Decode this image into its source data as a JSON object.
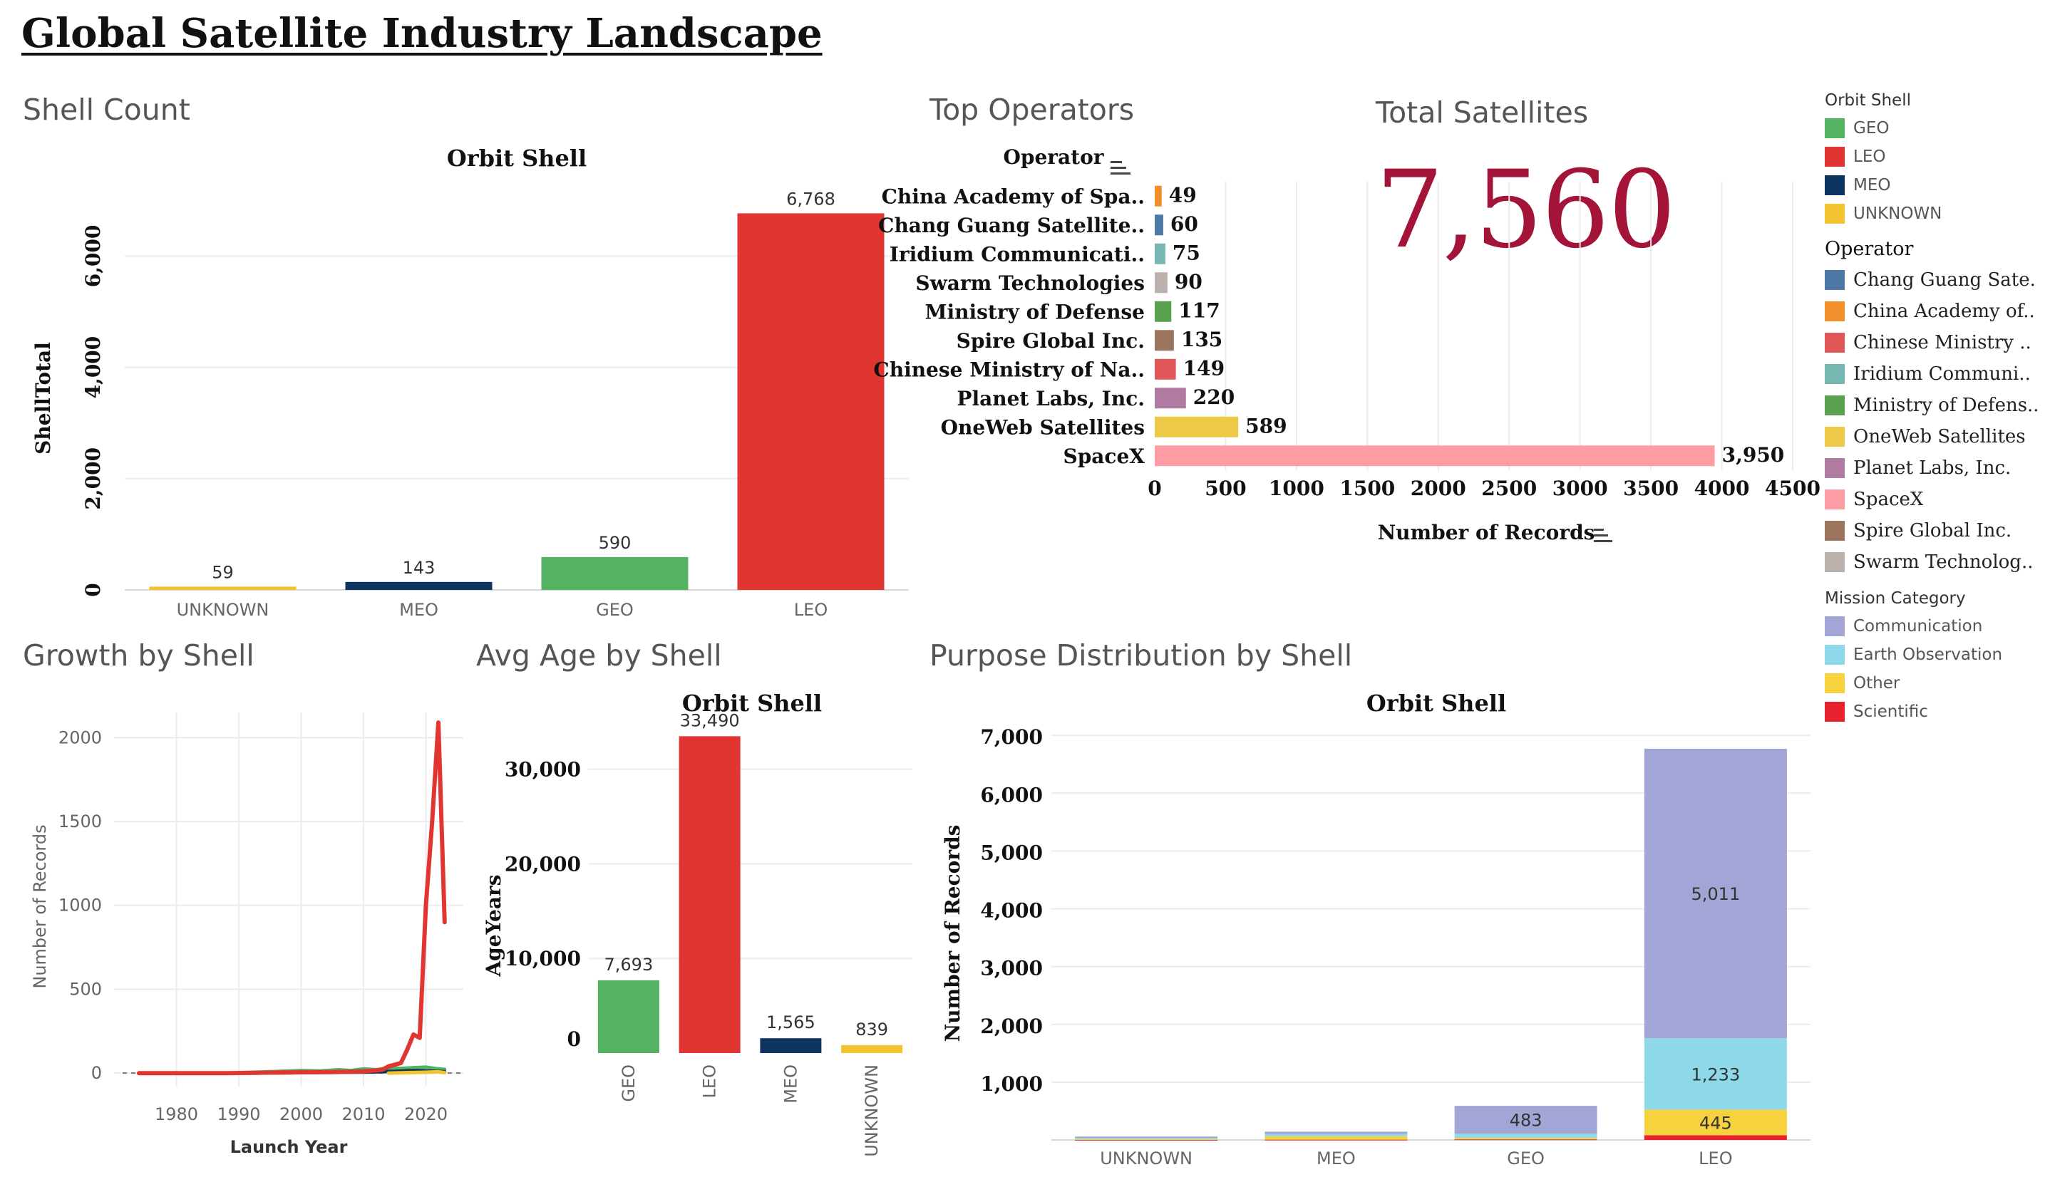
{
  "dashboard_title": "Global Satellite Industry Landscape",
  "sections": {
    "shell_count": "Shell Count",
    "top_operators": "Top Operators",
    "total_satellites": "Total Satellites",
    "growth_by_shell": "Growth by Shell",
    "avg_age_by_shell": "Avg Age by Shell",
    "purpose_distribution": "Purpose Distribution by Shell"
  },
  "total_satellites_value": "7,560",
  "colors": {
    "GEO": "#55b263",
    "LEO": "#e03530",
    "MEO": "#0d3560",
    "UNKNOWN": "#f2c230",
    "Communication": "#a3a5d6",
    "Earth Observation": "#8dd9e9",
    "Other": "#f6d23e",
    "Scientific": "#e8222e"
  },
  "legend": {
    "orbit_shell": {
      "title": "Orbit Shell",
      "items": [
        {
          "label": "GEO",
          "color": "#55b263"
        },
        {
          "label": "LEO",
          "color": "#e03530"
        },
        {
          "label": "MEO",
          "color": "#0d3560"
        },
        {
          "label": "UNKNOWN",
          "color": "#f2c230"
        }
      ]
    },
    "operator": {
      "title": "Operator",
      "items": [
        {
          "label": "Chang Guang Sate..",
          "color": "#4e79a7"
        },
        {
          "label": "China Academy of..",
          "color": "#f28e2b"
        },
        {
          "label": "Chinese Ministry ..",
          "color": "#e15759"
        },
        {
          "label": "Iridium Communi..",
          "color": "#76b7b2"
        },
        {
          "label": "Ministry of Defens..",
          "color": "#59a14f"
        },
        {
          "label": "OneWeb Satellites",
          "color": "#edc948"
        },
        {
          "label": "Planet Labs, Inc.",
          "color": "#b07aa1"
        },
        {
          "label": "SpaceX",
          "color": "#ff9da7"
        },
        {
          "label": "Spire Global Inc.",
          "color": "#9c755f"
        },
        {
          "label": "Swarm Technolog..",
          "color": "#bab0ac"
        }
      ]
    },
    "mission_category": {
      "title": "Mission Category",
      "items": [
        {
          "label": "Communication",
          "color": "#a3a5d6"
        },
        {
          "label": "Earth Observation",
          "color": "#8dd9e9"
        },
        {
          "label": "Other",
          "color": "#f6d23e"
        },
        {
          "label": "Scientific",
          "color": "#e8222e"
        }
      ]
    }
  },
  "chart_data": [
    {
      "id": "shell_count",
      "type": "bar",
      "title": "Orbit Shell",
      "ylabel": "ShellTotal",
      "categories": [
        "UNKNOWN",
        "MEO",
        "GEO",
        "LEO"
      ],
      "values": [
        59,
        143,
        590,
        6768
      ],
      "data_labels": [
        "59",
        "143",
        "590",
        "6,768"
      ],
      "ylim": [
        0,
        7400
      ],
      "yticks": [
        0,
        2000,
        4000,
        6000
      ],
      "ytick_labels": [
        "0",
        "2,000",
        "4,000",
        "6,000"
      ]
    },
    {
      "id": "top_operators",
      "type": "bar",
      "orientation": "horizontal",
      "title": "Operator",
      "xlabel": "Number of Records",
      "categories": [
        "China Academy of Spa..",
        "Chang Guang Satellite..",
        "Iridium Communicati..",
        "Swarm Technologies",
        "Ministry of Defense",
        "Spire Global Inc.",
        "Chinese Ministry of Na..",
        "Planet Labs, Inc.",
        "OneWeb Satellites",
        "SpaceX"
      ],
      "values": [
        49,
        60,
        75,
        90,
        117,
        135,
        149,
        220,
        589,
        3950
      ],
      "data_labels": [
        "49",
        "60",
        "75",
        "90",
        "117",
        "135",
        "149",
        "220",
        "589",
        "3,950"
      ],
      "colors": [
        "#f28e2b",
        "#4e79a7",
        "#76b7b2",
        "#bab0ac",
        "#59a14f",
        "#9c755f",
        "#e15759",
        "#b07aa1",
        "#edc948",
        "#ff9da7"
      ],
      "xlim": [
        0,
        4500
      ],
      "xticks": [
        0,
        500,
        1000,
        1500,
        2000,
        2500,
        3000,
        3500,
        4000,
        4500
      ],
      "xtick_labels": [
        "0",
        "500",
        "1000",
        "1500",
        "2000",
        "2500",
        "3000",
        "3500",
        "4000",
        "4500"
      ]
    },
    {
      "id": "growth_by_shell",
      "type": "line",
      "xlabel": "Launch Year",
      "ylabel": "Number of Records",
      "xlim": [
        1970,
        2026
      ],
      "ylim": [
        -80,
        2150
      ],
      "xticks": [
        1980,
        1990,
        2000,
        2010,
        2020
      ],
      "yticks": [
        0,
        500,
        1000,
        1500,
        2000
      ],
      "series": [
        {
          "name": "LEO",
          "color": "#e03530",
          "x": [
            1974,
            1980,
            1988,
            1995,
            2000,
            2005,
            2010,
            2013,
            2014,
            2015,
            2016,
            2017,
            2018,
            2019,
            2020,
            2021,
            2022,
            2023
          ],
          "y": [
            0,
            0,
            0,
            3,
            5,
            6,
            10,
            20,
            40,
            50,
            60,
            140,
            230,
            210,
            1000,
            1500,
            2090,
            900
          ]
        },
        {
          "name": "GEO",
          "color": "#55b263",
          "x": [
            1988,
            1995,
            2000,
            2003,
            2006,
            2008,
            2010,
            2012,
            2014,
            2016,
            2018,
            2020,
            2022,
            2023
          ],
          "y": [
            0,
            8,
            15,
            12,
            20,
            15,
            25,
            20,
            30,
            28,
            32,
            35,
            25,
            22
          ]
        },
        {
          "name": "MEO",
          "color": "#0d3560",
          "x": [
            1990,
            2000,
            2005,
            2010,
            2015,
            2018,
            2020,
            2022,
            2023
          ],
          "y": [
            0,
            3,
            5,
            6,
            10,
            15,
            12,
            10,
            8
          ]
        },
        {
          "name": "UNKNOWN",
          "color": "#f2c230",
          "x": [
            2014,
            2017,
            2020,
            2022,
            2023
          ],
          "y": [
            0,
            3,
            5,
            8,
            3
          ]
        }
      ]
    },
    {
      "id": "avg_age_by_shell",
      "type": "bar",
      "title": "Orbit Shell",
      "ylabel": "AgeYears",
      "categories": [
        "GEO",
        "LEO",
        "MEO",
        "UNKNOWN"
      ],
      "values": [
        7693,
        33490,
        1565,
        839
      ],
      "data_labels": [
        "7,693",
        "33,490",
        "1,565",
        "839"
      ],
      "ylim": [
        0,
        36000
      ],
      "yticks": [
        0,
        10000,
        20000,
        30000
      ],
      "ytick_labels": [
        "0",
        "10,000",
        "20,000",
        "30,000"
      ]
    },
    {
      "id": "purpose_distribution",
      "type": "bar",
      "stacked": true,
      "title": "Orbit Shell",
      "ylabel": "Number of Records",
      "categories": [
        "UNKNOWN",
        "MEO",
        "GEO",
        "LEO"
      ],
      "ylim": [
        0,
        7150
      ],
      "yticks": [
        1000,
        2000,
        3000,
        4000,
        5000,
        6000,
        7000
      ],
      "ytick_labels": [
        "1,000",
        "2,000",
        "3,000",
        "4,000",
        "5,000",
        "6,000",
        "7,000"
      ],
      "series": [
        {
          "name": "Scientific",
          "values": [
            2,
            5,
            10,
            80
          ],
          "labels": [
            "",
            "",
            "",
            ""
          ]
        },
        {
          "name": "Other",
          "values": [
            15,
            60,
            25,
            445
          ],
          "labels": [
            "",
            "",
            "",
            "445"
          ]
        },
        {
          "name": "Earth Observation",
          "values": [
            20,
            40,
            72,
            1233
          ],
          "labels": [
            "",
            "",
            "",
            "1,233"
          ]
        },
        {
          "name": "Communication",
          "values": [
            22,
            38,
            483,
            5011
          ],
          "labels": [
            "",
            "",
            "483",
            "5,011"
          ]
        }
      ]
    }
  ]
}
